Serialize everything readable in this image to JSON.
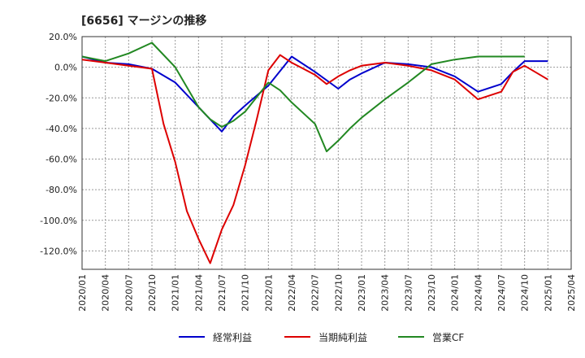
{
  "chart_data": {
    "type": "line",
    "title": "[6656]  マージンの推移",
    "xlabel": "",
    "ylabel": "",
    "ylim": [
      -132,
      20
    ],
    "yticks": [
      20,
      0,
      -20,
      -40,
      -60,
      -80,
      -100,
      -120
    ],
    "ytick_labels": [
      "20.0%",
      "0.0%",
      "-20.0%",
      "-40.0%",
      "-60.0%",
      "-80.0%",
      "-100.0%",
      "-120.0%"
    ],
    "x_tick_labels": [
      "2020/01",
      "2020/04",
      "2020/07",
      "2020/10",
      "2021/01",
      "2021/04",
      "2021/07",
      "2021/10",
      "2022/01",
      "2022/04",
      "2022/07",
      "2022/10",
      "2023/01",
      "2023/04",
      "2023/07",
      "2023/10",
      "2024/01",
      "2024/04",
      "2024/07",
      "2024/10",
      "2025/01",
      "2025/04"
    ],
    "grid": true,
    "legend_position": "bottom",
    "series": [
      {
        "name": "経常利益",
        "color": "#0000cc",
        "x": [
          0,
          1,
          2,
          3,
          4,
          5,
          6,
          6.5,
          7,
          8,
          9,
          10,
          11,
          11.5,
          12,
          13,
          14,
          15,
          16,
          17,
          18,
          18.5,
          19,
          20
        ],
        "values": [
          7,
          3,
          2,
          -1,
          -10,
          -26,
          -42,
          -32,
          -25,
          -12,
          7,
          -3,
          -14,
          -8,
          -4,
          3,
          2,
          0,
          -6,
          -16,
          -11,
          -3,
          4,
          4
        ]
      },
      {
        "name": "当期純利益",
        "color": "#dd0000",
        "x": [
          0,
          1,
          2,
          3,
          3.5,
          4,
          4.5,
          5,
          5.5,
          6,
          6.5,
          7,
          7.5,
          8,
          8.5,
          9,
          10,
          10.5,
          11,
          11.5,
          12,
          13,
          14,
          15,
          16,
          17,
          18,
          18.5,
          19,
          20
        ],
        "values": [
          5,
          3,
          1,
          -1,
          -37,
          -62,
          -94,
          -112,
          -128,
          -106,
          -90,
          -64,
          -34,
          -2,
          8,
          3,
          -5,
          -11,
          -6,
          -2,
          1,
          3,
          1,
          -2,
          -8,
          -21,
          -16,
          -3,
          1,
          -8
        ]
      },
      {
        "name": "営業CF",
        "color": "#228822",
        "x": [
          0,
          1,
          2,
          3,
          4,
          5,
          5.5,
          6,
          6.5,
          7,
          8,
          8.5,
          9,
          10,
          10.5,
          11,
          11.5,
          12,
          13,
          14,
          15,
          16,
          17,
          18,
          18.5,
          19
        ],
        "values": [
          7,
          4,
          9,
          16,
          0,
          -26,
          -34,
          -39,
          -35,
          -29,
          -10,
          -15,
          -23,
          -37,
          -55,
          -48,
          -40,
          -33,
          -21,
          -10,
          2,
          5,
          7,
          7,
          7,
          7
        ]
      }
    ],
    "legend": [
      {
        "label": "経常利益",
        "color": "#0000cc"
      },
      {
        "label": "当期純利益",
        "color": "#dd0000"
      },
      {
        "label": "営業CF",
        "color": "#228822"
      }
    ]
  }
}
